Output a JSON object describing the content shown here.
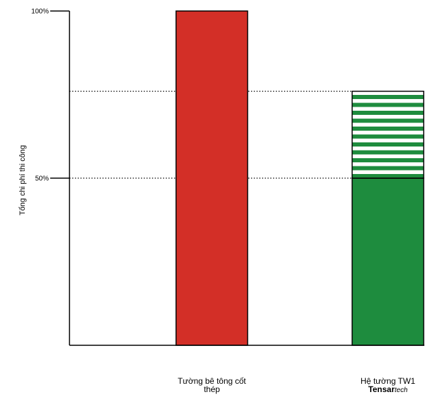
{
  "chart_data": {
    "type": "bar",
    "ylabel": "Tổng chi phí thi công",
    "yticks": [
      {
        "value": 50,
        "label": "50%"
      },
      {
        "value": 100,
        "label": "100%"
      }
    ],
    "ylim": [
      0,
      100
    ],
    "reference_lines": [
      76,
      50
    ],
    "categories": [
      {
        "lines": [
          "Tường bê tông cốt",
          "thép"
        ]
      },
      {
        "lines": [
          "Hệ tường TW1"
        ],
        "brand_bold": "Tensar",
        "brand_italic": "tech"
      }
    ],
    "series": [
      {
        "values": [
          100,
          50
        ],
        "colors": [
          "#d32f27",
          "#1e8c3e"
        ]
      },
      {
        "values": [
          0,
          26
        ],
        "pattern": "green-white-stripes"
      }
    ],
    "colors": {
      "red": "#d32f27",
      "green": "#1e8c3e",
      "stripe": "#1e8c3e",
      "axis": "#000000"
    }
  }
}
